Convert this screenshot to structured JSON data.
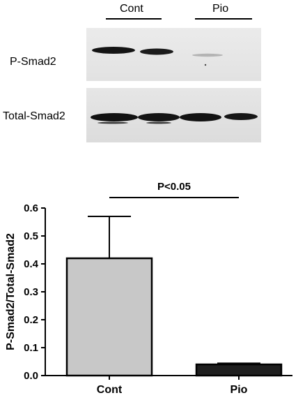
{
  "blot": {
    "groups": [
      "Cont",
      "Pio"
    ],
    "rows": [
      "P-Smad2",
      "Total-Smad2"
    ]
  },
  "significance": {
    "label": "P<0.05"
  },
  "chart_data": {
    "type": "bar",
    "categories": [
      "Cont",
      "Pio"
    ],
    "values": [
      0.42,
      0.04
    ],
    "errors_upper": [
      0.57,
      0.044
    ],
    "bar_colors": [
      "#c8c8c8",
      "#1e1e1e"
    ],
    "ylabel": "P-Smad2/Total-Smad2",
    "ylim": [
      0,
      0.6
    ],
    "yticks": [
      "0.0",
      "0.1",
      "0.2",
      "0.3",
      "0.4",
      "0.5",
      "0.6"
    ],
    "grid": false
  }
}
